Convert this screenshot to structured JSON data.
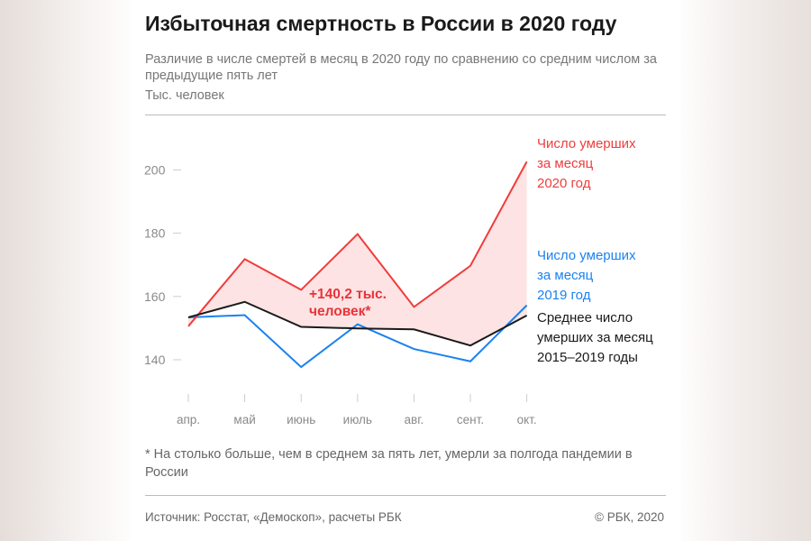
{
  "header": {
    "title": "Избыточная смертность в России в 2020 году",
    "subtitle": "Различие в числе смертей в месяц в 2020 году по сравнению со средним числом за предыдущие пять лет",
    "unit": "Тыс. человек"
  },
  "chart_data": {
    "type": "line",
    "categories": [
      "апр.",
      "май",
      "июнь",
      "июль",
      "авг.",
      "сент.",
      "окт."
    ],
    "ylim": [
      132,
      212
    ],
    "yticks": [
      140,
      160,
      180,
      200
    ],
    "grid": false,
    "series": [
      {
        "name": "Число умерших за месяц 2020 год",
        "label_lines": [
          "Число умерших",
          "за месяц",
          "2020 год"
        ],
        "color": "#f03c3c",
        "values": [
          150.6,
          171.8,
          162.1,
          179.7,
          156.7,
          169.7,
          202.6
        ]
      },
      {
        "name": "Число умерших за месяц 2019 год",
        "label_lines": [
          "Число умерших",
          "за месяц",
          "2019 год"
        ],
        "color": "#1a82f0",
        "values": [
          153.4,
          154.1,
          137.7,
          151.2,
          143.4,
          139.5,
          157.2
        ]
      },
      {
        "name": "Среднее число умерших за месяц 2015–2019 годы",
        "label_lines": [
          "Среднее число",
          "умерших за месяц",
          "2015–2019 годы"
        ],
        "color": "#1a1a1a",
        "values": [
          153.4,
          158.3,
          150.4,
          149.9,
          149.6,
          144.5,
          154.0
        ]
      }
    ],
    "fill_color": "#fde3e3",
    "annotation": {
      "lines": [
        "+140,2 тыс.",
        "человек*"
      ],
      "color": "#e8343a"
    }
  },
  "footer": {
    "note": "* На столько больше, чем в среднем за пять лет, умерли за полгода пандемии в России",
    "source": "Источник: Росстат, «Демоскоп», расчеты РБК",
    "copyright": "© РБК, 2020"
  }
}
